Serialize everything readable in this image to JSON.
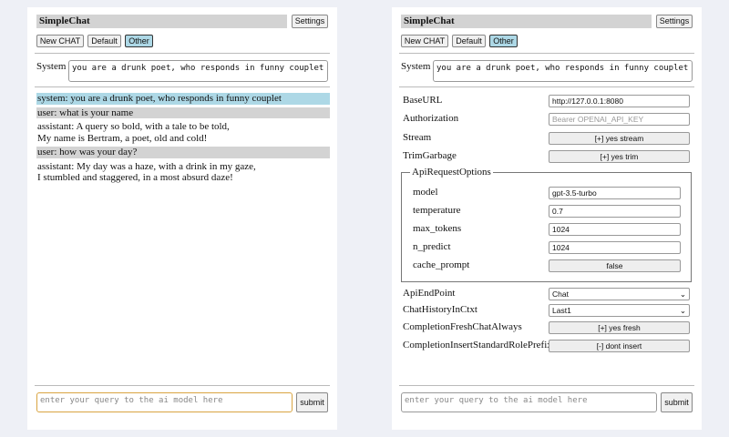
{
  "app": {
    "title": "SimpleChat",
    "settings_label": "Settings",
    "new_chat": "New CHAT",
    "chats": [
      "Default",
      "Other"
    ],
    "selected_chat": "Other",
    "system_label": "System",
    "system_value": "you are a drunk poet, who responds in funny couplet",
    "query_placeholder": "enter your query to the ai model here",
    "submit_label": "submit"
  },
  "chat": {
    "messages": [
      {
        "role": "system",
        "lines": [
          "system: you are a drunk poet, who responds in funny couplet"
        ]
      },
      {
        "role": "user",
        "lines": [
          "user: what is your name"
        ]
      },
      {
        "role": "assistant",
        "lines": [
          "assistant: A query so bold, with a tale to be told,",
          "My name is Bertram, a poet, old and cold!"
        ]
      },
      {
        "role": "user",
        "lines": [
          "user: how was your day?"
        ]
      },
      {
        "role": "assistant",
        "lines": [
          "assistant: My day was a haze, with a drink in my gaze,",
          "I stumbled and staggered, in a most absurd daze!"
        ]
      }
    ]
  },
  "settings": {
    "base_url": {
      "label": "BaseURL",
      "value": "http://127.0.0.1:8080"
    },
    "authorization": {
      "label": "Authorization",
      "placeholder": "Bearer OPENAI_API_KEY"
    },
    "stream": {
      "label": "Stream",
      "value": "[+] yes stream"
    },
    "trim_garbage": {
      "label": "TrimGarbage",
      "value": "[+] yes trim"
    },
    "api_request_options": {
      "legend": "ApiRequestOptions",
      "fields": [
        {
          "label": "model",
          "value": "gpt-3.5-turbo",
          "type": "input"
        },
        {
          "label": "temperature",
          "value": "0.7",
          "type": "input"
        },
        {
          "label": "max_tokens",
          "value": "1024",
          "type": "input"
        },
        {
          "label": "n_predict",
          "value": "1024",
          "type": "input"
        },
        {
          "label": "cache_prompt",
          "value": "false",
          "type": "button"
        }
      ]
    },
    "api_endpoint": {
      "label": "ApiEndPoint",
      "value": "Chat"
    },
    "chat_history": {
      "label": "ChatHistoryInCtxt",
      "value": "Last1"
    },
    "fresh_chat": {
      "label": "CompletionFreshChatAlways",
      "value": "[+] yes fresh"
    },
    "insert_role": {
      "label": "CompletionInsertStandardRolePrefix",
      "value": "[-] dont insert"
    }
  }
}
